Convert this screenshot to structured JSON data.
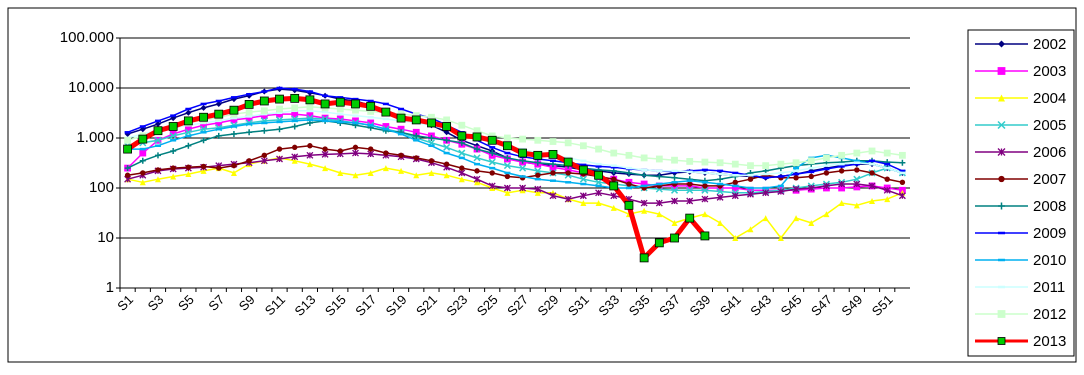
{
  "chart_data": {
    "type": "line",
    "log_scale": true,
    "grid": true,
    "legend": "right",
    "categories": [
      "S1",
      null,
      "S3",
      null,
      "S5",
      null,
      "S7",
      null,
      "S9",
      null,
      "S11",
      null,
      "S13",
      null,
      "S15",
      null,
      "S17",
      null,
      "S19",
      null,
      "S21",
      null,
      "S23",
      null,
      "S25",
      null,
      "S27",
      null,
      "S29",
      null,
      "S31",
      null,
      "S33",
      null,
      "S35",
      null,
      "S37",
      null,
      "S39",
      null,
      "S41",
      null,
      "S43",
      null,
      "S45",
      null,
      "S47",
      null,
      "S49",
      null,
      "S51",
      null
    ],
    "ylim": [
      1,
      100000
    ],
    "yticks": [
      1,
      10,
      100,
      {
        "value": 1000,
        "label": "1.000"
      },
      {
        "value": 10000,
        "label": "10.000"
      },
      {
        "value": 100000,
        "label": "100.000"
      }
    ],
    "series": [
      {
        "name": "2002",
        "color": "#000080",
        "marker": "diamond",
        "values": [
          1200,
          1500,
          1900,
          2500,
          3200,
          4000,
          4800,
          6000,
          7000,
          8500,
          9500,
          9000,
          8000,
          7000,
          6000,
          5500,
          4500,
          3500,
          2800,
          2300,
          1800,
          1300,
          900,
          700,
          550,
          400,
          330,
          300,
          280,
          260,
          230,
          220,
          200,
          190,
          180,
          180,
          200,
          210,
          200,
          190,
          180,
          170,
          160,
          170,
          190,
          220,
          250,
          280,
          300,
          300,
          250,
          200
        ]
      },
      {
        "name": "2003",
        "color": "#FF00FF",
        "marker": "square",
        "values": [
          250,
          500,
          900,
          1200,
          1500,
          1800,
          2000,
          2300,
          2500,
          2800,
          3000,
          3000,
          2800,
          2500,
          2400,
          2200,
          2000,
          1700,
          1500,
          1300,
          1100,
          900,
          750,
          600,
          450,
          380,
          330,
          300,
          260,
          230,
          200,
          170,
          150,
          130,
          120,
          110,
          110,
          110,
          100,
          100,
          100,
          90,
          90,
          90,
          90,
          95,
          100,
          100,
          105,
          110,
          100,
          90
        ]
      },
      {
        "name": "2004",
        "color": "#FFFF00",
        "marker": "triangle",
        "values": [
          150,
          130,
          150,
          170,
          190,
          220,
          250,
          200,
          300,
          350,
          400,
          350,
          300,
          250,
          200,
          180,
          200,
          250,
          220,
          180,
          200,
          180,
          150,
          130,
          100,
          80,
          90,
          80,
          80,
          60,
          50,
          50,
          40,
          30,
          35,
          30,
          20,
          25,
          30,
          20,
          10,
          15,
          25,
          10,
          25,
          20,
          30,
          50,
          45,
          55,
          60,
          80
        ]
      },
      {
        "name": "2005",
        "color": "#33CCCC",
        "marker": "x",
        "values": [
          700,
          800,
          900,
          1100,
          1300,
          1500,
          1600,
          1800,
          2000,
          2200,
          2300,
          2400,
          2500,
          2400,
          2200,
          2000,
          1800,
          1500,
          1300,
          1000,
          800,
          650,
          500,
          400,
          330,
          280,
          250,
          220,
          200,
          180,
          150,
          130,
          120,
          110,
          100,
          95,
          90,
          90,
          90,
          85,
          80,
          80,
          85,
          90,
          100,
          110,
          120,
          130,
          150,
          200,
          250,
          200
        ]
      },
      {
        "name": "2006",
        "color": "#800080",
        "marker": "star",
        "values": [
          150,
          180,
          220,
          240,
          250,
          260,
          280,
          300,
          320,
          350,
          380,
          420,
          450,
          470,
          480,
          500,
          480,
          450,
          420,
          380,
          320,
          260,
          200,
          150,
          110,
          100,
          100,
          95,
          70,
          60,
          70,
          80,
          70,
          60,
          50,
          50,
          55,
          55,
          60,
          65,
          70,
          75,
          80,
          85,
          95,
          100,
          110,
          120,
          120,
          110,
          90,
          70
        ]
      },
      {
        "name": "2007",
        "color": "#800000",
        "marker": "circle",
        "values": [
          180,
          200,
          230,
          250,
          260,
          270,
          250,
          280,
          350,
          450,
          600,
          650,
          700,
          600,
          550,
          650,
          600,
          500,
          450,
          400,
          350,
          300,
          250,
          220,
          200,
          170,
          160,
          180,
          200,
          200,
          190,
          170,
          150,
          120,
          100,
          110,
          120,
          120,
          110,
          110,
          130,
          150,
          180,
          160,
          160,
          170,
          200,
          220,
          230,
          200,
          150,
          130
        ]
      },
      {
        "name": "2008",
        "color": "#008080",
        "marker": "plus",
        "values": [
          250,
          350,
          450,
          550,
          700,
          900,
          1100,
          1200,
          1300,
          1400,
          1500,
          1700,
          2000,
          2200,
          2000,
          1800,
          1600,
          1400,
          1300,
          1100,
          1000,
          900,
          800,
          600,
          500,
          400,
          350,
          320,
          300,
          280,
          250,
          230,
          220,
          200,
          180,
          170,
          160,
          150,
          140,
          150,
          170,
          200,
          220,
          250,
          280,
          300,
          320,
          330,
          350,
          350,
          330,
          320
        ]
      },
      {
        "name": "2009",
        "color": "#0000FF",
        "marker": "dash",
        "values": [
          1300,
          1700,
          2200,
          2800,
          3800,
          4800,
          5500,
          6500,
          7500,
          8500,
          10000,
          9500,
          8500,
          7000,
          6500,
          6000,
          5500,
          4800,
          3800,
          3000,
          2500,
          1800,
          1300,
          900,
          650,
          500,
          420,
          380,
          350,
          320,
          290,
          270,
          260,
          240,
          230,
          220,
          210,
          220,
          230,
          220,
          200,
          180,
          160,
          170,
          190,
          210,
          240,
          270,
          300,
          350,
          300,
          220
        ]
      },
      {
        "name": "2010",
        "color": "#00B0F0",
        "marker": "dash",
        "values": [
          600,
          600,
          700,
          900,
          1100,
          1300,
          1500,
          1700,
          1900,
          2000,
          2100,
          2200,
          2300,
          2200,
          2100,
          2000,
          1800,
          1500,
          1200,
          900,
          700,
          500,
          400,
          300,
          250,
          200,
          170,
          150,
          140,
          130,
          120,
          110,
          100,
          100,
          110,
          120,
          130,
          140,
          130,
          120,
          110,
          100,
          100,
          110,
          250,
          400,
          450,
          400,
          350,
          300,
          250,
          200
        ]
      },
      {
        "name": "2011",
        "color": "#CCFFFF",
        "marker": "dash",
        "values": [
          1000,
          1200,
          1400,
          1600,
          1800,
          2000,
          2200,
          2500,
          2700,
          3000,
          3200,
          3500,
          3500,
          3300,
          3000,
          2800,
          2600,
          2400,
          2200,
          2000,
          1800,
          1500,
          1200,
          1000,
          800,
          700,
          600,
          500,
          450,
          400,
          350,
          300,
          280,
          250,
          230,
          220,
          220,
          210,
          200,
          190,
          180,
          180,
          190,
          200,
          220,
          250,
          280,
          300,
          320,
          300,
          250,
          200
        ]
      },
      {
        "name": "2012",
        "color": "#CCFFCC",
        "marker": "square",
        "values": [
          900,
          1100,
          1400,
          1700,
          2000,
          2300,
          2600,
          3000,
          3300,
          3500,
          3800,
          4000,
          4200,
          4000,
          3800,
          3600,
          3400,
          3200,
          3000,
          2800,
          2600,
          2300,
          1800,
          1400,
          1100,
          1000,
          950,
          900,
          850,
          800,
          700,
          600,
          500,
          450,
          400,
          380,
          360,
          340,
          330,
          320,
          300,
          280,
          280,
          300,
          320,
          350,
          400,
          450,
          500,
          550,
          500,
          450
        ]
      },
      {
        "name": "2013",
        "color": "#FF0000",
        "marker": "square",
        "marker_color": "#00CC00",
        "line_width": 5,
        "values": [
          600,
          950,
          1400,
          1700,
          2200,
          2600,
          3000,
          3600,
          4700,
          5500,
          6000,
          6200,
          5800,
          4800,
          5200,
          4800,
          4300,
          3300,
          2500,
          2300,
          2000,
          1700,
          1100,
          1050,
          900,
          700,
          500,
          450,
          470,
          330,
          230,
          180,
          110,
          45,
          4,
          8,
          10,
          25,
          11,
          null,
          null,
          null,
          null,
          null,
          null,
          null,
          null,
          null,
          null,
          null,
          null,
          null
        ]
      }
    ]
  }
}
